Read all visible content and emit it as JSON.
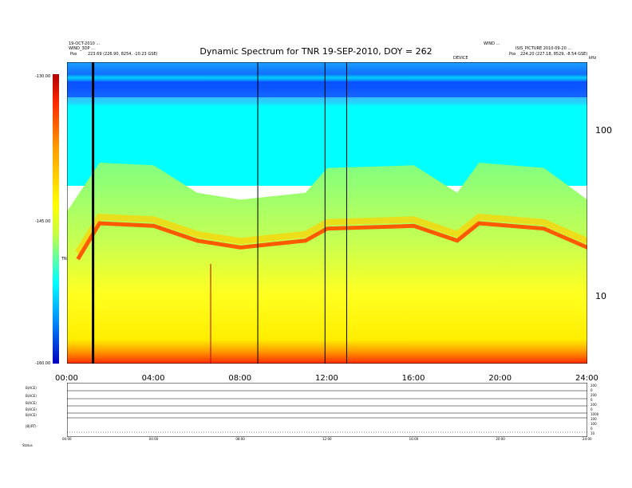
{
  "header": {
    "left_line1": "19-OCT-2010 ...",
    "left_line2": "WIND_3DP ...",
    "left_pos_label": "Pos",
    "left_pos_value": "223.69 (226.90, 8254, -10.23 GSE)",
    "right_line1": "WIND ...",
    "right_line2": "ISIS_PICTURE 2010-09-20 ...",
    "right_pos_label": "Pos",
    "right_pos_value": "224.20 (227.18, 8529, -8.54 GSE)",
    "center_small": "DEVICE",
    "corner_right": "kHz"
  },
  "chart_data": {
    "type": "heatmap",
    "title": "Dynamic Spectrum for TNR 19-SEP-2010, DOY = 262",
    "colorbar": {
      "ticks": [
        "-130.00",
        "-145.00",
        "-160.00"
      ],
      "label": "TNR",
      "colors": [
        "#b00000",
        "#ff2a00",
        "#ffff00",
        "#00ffff",
        "#0000c0"
      ]
    },
    "xticks": [
      "00:00",
      "04:00",
      "08:00",
      "12:00",
      "16:00",
      "20:00",
      "24:00"
    ],
    "yticks_right": [
      "100",
      "10"
    ],
    "vertical_lines_hours": [
      1.2,
      8.8,
      11.9,
      12.9
    ],
    "ridge_profile": [
      {
        "t": 0.5,
        "f": 17
      },
      {
        "t": 1.5,
        "f": 28
      },
      {
        "t": 4.0,
        "f": 27
      },
      {
        "t": 6.0,
        "f": 22
      },
      {
        "t": 8.0,
        "f": 20
      },
      {
        "t": 9.5,
        "f": 21
      },
      {
        "t": 11.0,
        "f": 22
      },
      {
        "t": 12.0,
        "f": 26
      },
      {
        "t": 16.0,
        "f": 27
      },
      {
        "t": 18.0,
        "f": 22
      },
      {
        "t": 19.0,
        "f": 28
      },
      {
        "t": 22.0,
        "f": 26
      },
      {
        "t": 24.0,
        "f": 20
      }
    ]
  },
  "lower_panel": {
    "row_labels": [
      "B(ACE)",
      "B(ACE)",
      "B(ACE)",
      "B(ACE)",
      "B(ACE)",
      "|B|(RT)",
      "Status"
    ],
    "right_labels": [
      "200",
      "0",
      "200",
      "0",
      "200",
      "0",
      "1000",
      "100",
      "100",
      "0",
      "10"
    ],
    "xticks": [
      "00:00",
      "04:00",
      "08:00",
      "12:00",
      "16:00",
      "20:00",
      "24:00"
    ]
  }
}
